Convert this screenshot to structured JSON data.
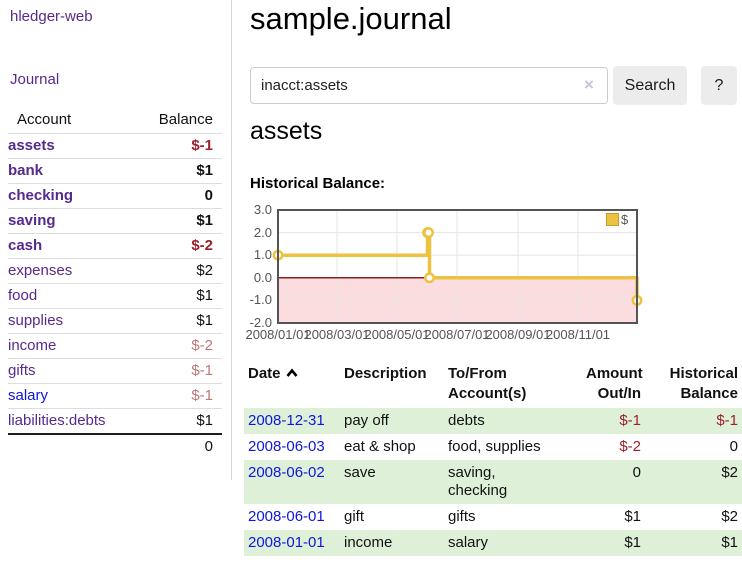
{
  "app": {
    "title": "hledger-web"
  },
  "colors": {
    "link_purple": "#552a8c",
    "link_blue": "#0f16dd",
    "negative_strong": "#9e1f2d",
    "negative_dim": "#bd7878",
    "row_green": "#dff0d8",
    "chart_line_gold": "#edc240",
    "chart_negative_fill": "#fbdde0",
    "chart_zero_line": "#8b1f1f",
    "chart_frame_gray": "#545454"
  },
  "sidebar": {
    "nav_journal": "Journal",
    "accounts": {
      "col_account": "Account",
      "col_balance": "Balance",
      "rows": [
        {
          "name": "assets",
          "balance": "$-1",
          "depth": 1,
          "bold": true,
          "neg": "strong"
        },
        {
          "name": "bank",
          "balance": "$1",
          "depth": 2,
          "bold": true
        },
        {
          "name": "checking",
          "balance": "0",
          "depth": 3,
          "bold": true
        },
        {
          "name": "saving",
          "balance": "$1",
          "depth": 3,
          "bold": true
        },
        {
          "name": "cash",
          "balance": "$-2",
          "depth": 2,
          "bold": true,
          "neg": "strong"
        },
        {
          "name": "expenses",
          "balance": "$2",
          "depth": 1
        },
        {
          "name": "food",
          "balance": "$1",
          "depth": 2
        },
        {
          "name": "supplies",
          "balance": "$1",
          "depth": 2
        },
        {
          "name": "income",
          "balance": "$-2",
          "depth": 1,
          "neg": "dim"
        },
        {
          "name": "gifts",
          "balance": "$-1",
          "depth": 2,
          "neg": "dim"
        },
        {
          "name": "salary",
          "balance": "$-1",
          "depth": 2,
          "neg": "dim",
          "link_color": "blue"
        },
        {
          "name": "liabilities:debts",
          "balance": "$1",
          "depth": 1
        }
      ],
      "total": "0"
    }
  },
  "main": {
    "title": "sample.journal",
    "search": {
      "value": "inacct:assets",
      "clear_icon": "×",
      "button": "Search",
      "help_button": "?"
    },
    "account_heading": "assets",
    "chart_title": "Historical Balance:"
  },
  "chart_data": {
    "type": "line",
    "style": "step",
    "title": "Historical Balance",
    "series": [
      {
        "name": "$",
        "color": "#edc240",
        "points": [
          [
            "2008-01-01",
            1
          ],
          [
            "2008-06-01",
            2
          ],
          [
            "2008-06-02",
            2
          ],
          [
            "2008-06-03",
            0
          ],
          [
            "2008-12-31",
            -1
          ]
        ]
      }
    ],
    "xlim": [
      "2008-01-01",
      "2008-12-31"
    ],
    "ylim": [
      -2,
      3
    ],
    "x_ticks": [
      "2008/01/01",
      "2008/03/01",
      "2008/05/01",
      "2008/07/01",
      "2008/09/01",
      "2008/11/01"
    ],
    "y_ticks": [
      "3.0",
      "2.0",
      "1.0",
      "0.0",
      "-1.0",
      "-2.0"
    ],
    "grid": true,
    "legend_position": "top-right",
    "negative_region_shaded": true
  },
  "register": {
    "headers": [
      {
        "label": "Date",
        "align": "left",
        "sorted": "asc"
      },
      {
        "label": "Description",
        "align": "left"
      },
      {
        "label": "To/From Account(s)",
        "align": "left"
      },
      {
        "label": "Amount Out/In",
        "align": "right"
      },
      {
        "label": "Historical Balance",
        "align": "right"
      }
    ],
    "rows": [
      {
        "date": "2008-12-31",
        "description": "pay off",
        "accounts": "debts",
        "amount": "$-1",
        "amount_neg": true,
        "balance": "$-1",
        "balance_neg": true,
        "shaded": true
      },
      {
        "date": "2008-06-03",
        "description": "eat & shop",
        "accounts": "food, supplies",
        "amount": "$-2",
        "amount_neg": true,
        "balance": "0",
        "shaded": false
      },
      {
        "date": "2008-06-02",
        "description": "save",
        "accounts": "saving,\nchecking",
        "amount": "0",
        "balance": "$2",
        "shaded": true
      },
      {
        "date": "2008-06-01",
        "description": "gift",
        "accounts": "gifts",
        "amount": "$1",
        "balance": "$2",
        "shaded": false
      },
      {
        "date": "2008-01-01",
        "description": "income",
        "accounts": "salary",
        "amount": "$1",
        "balance": "$1",
        "shaded": true
      }
    ]
  }
}
